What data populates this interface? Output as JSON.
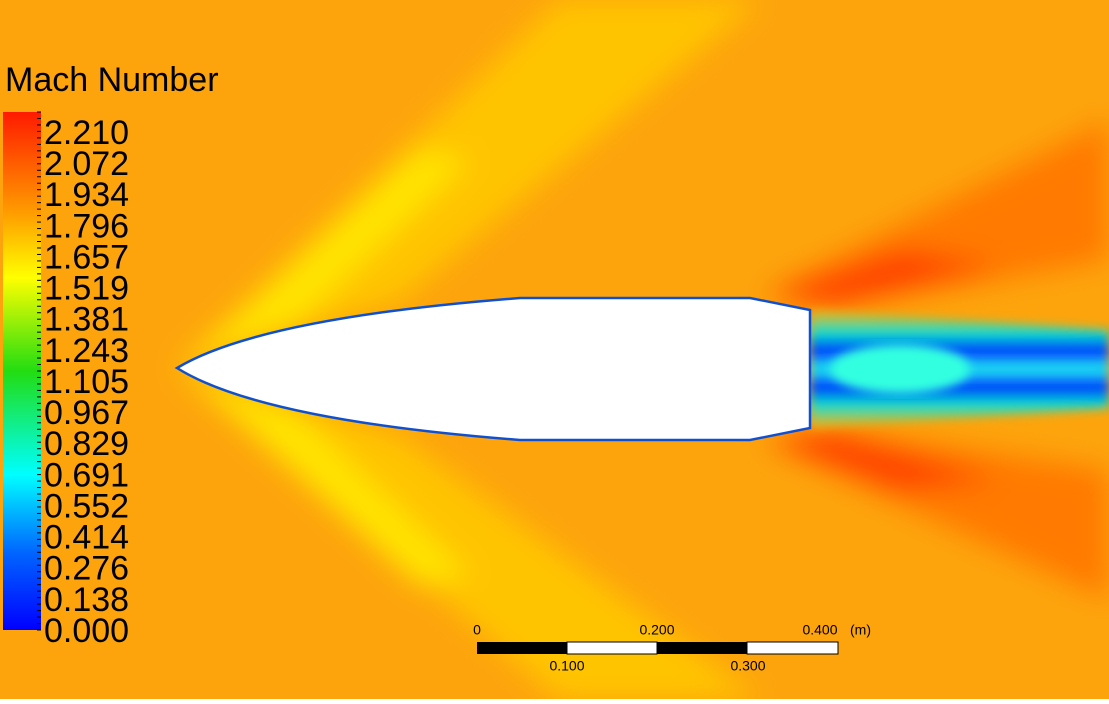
{
  "legend": {
    "title": "Mach Number",
    "labels": [
      "2.210",
      "2.072",
      "1.934",
      "1.796",
      "1.657",
      "1.519",
      "1.381",
      "1.243",
      "1.105",
      "0.967",
      "0.829",
      "0.691",
      "0.552",
      "0.414",
      "0.276",
      "0.138",
      "0.000"
    ]
  },
  "scale_bar": {
    "top_labels": [
      "0",
      "0.200",
      "0.400"
    ],
    "unit": "(m)",
    "bottom_labels": [
      "0.100",
      "0.300"
    ]
  }
}
